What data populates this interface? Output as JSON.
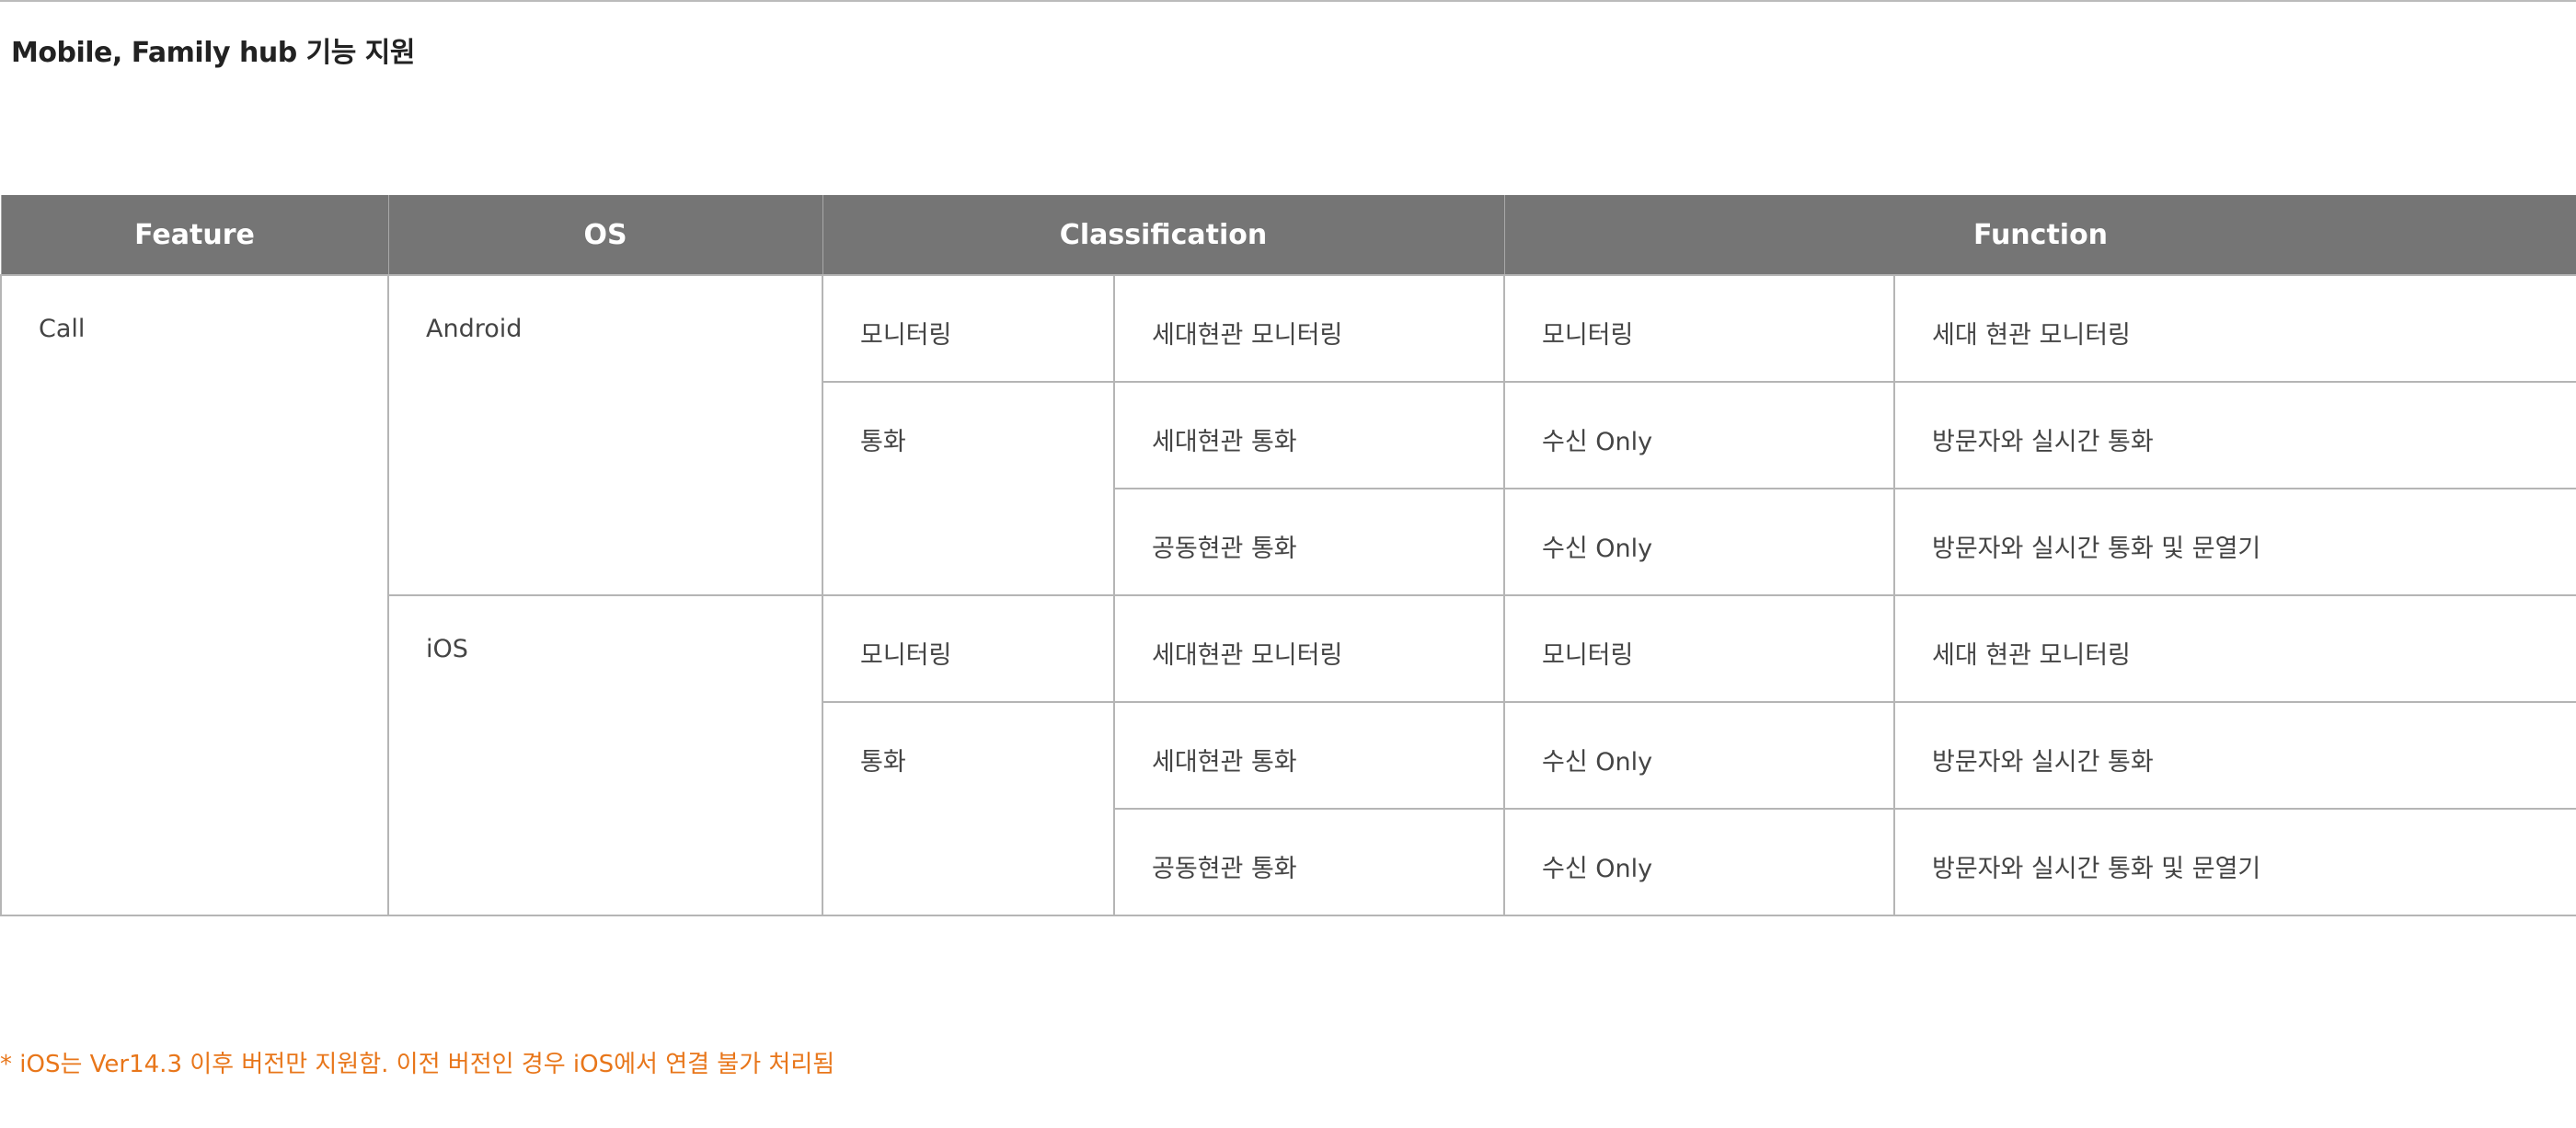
{
  "title": "Mobile, Family hub 기능 지원",
  "headers": {
    "feature": "Feature",
    "os": "OS",
    "classification": "Classification",
    "function": "Function"
  },
  "rows": {
    "feature": "Call",
    "android": {
      "os": "Android",
      "monitoring": {
        "class1": "모니터링",
        "class2": "세대현관 모니터링",
        "func1": "모니터링",
        "func2": "세대 현관 모니터링"
      },
      "call": {
        "class1": "통화",
        "row1": {
          "class2": "세대현관 통화",
          "func1": "수신 Only",
          "func2": "방문자와 실시간 통화"
        },
        "row2": {
          "class2": "공동현관 통화",
          "func1": "수신 Only",
          "func2": "방문자와 실시간 통화 및 문열기"
        }
      }
    },
    "ios": {
      "os": "iOS",
      "monitoring": {
        "class1": "모니터링",
        "class2": "세대현관 모니터링",
        "func1": "모니터링",
        "func2": "세대 현관 모니터링"
      },
      "call": {
        "class1": "통화",
        "row1": {
          "class2": "세대현관 통화",
          "func1": "수신 Only",
          "func2": "방문자와 실시간 통화"
        },
        "row2": {
          "class2": "공동현관 통화",
          "func1": "수신 Only",
          "func2": "방문자와 실시간 통화 및 문열기"
        }
      }
    }
  },
  "footnote": "* iOS는 Ver14.3 이후 버전만 지원함. 이전 버전인 경우 iOS에서 연결 불가 처리됨",
  "colors": {
    "header_bg": "#757575",
    "footnote": "#e8761a"
  }
}
